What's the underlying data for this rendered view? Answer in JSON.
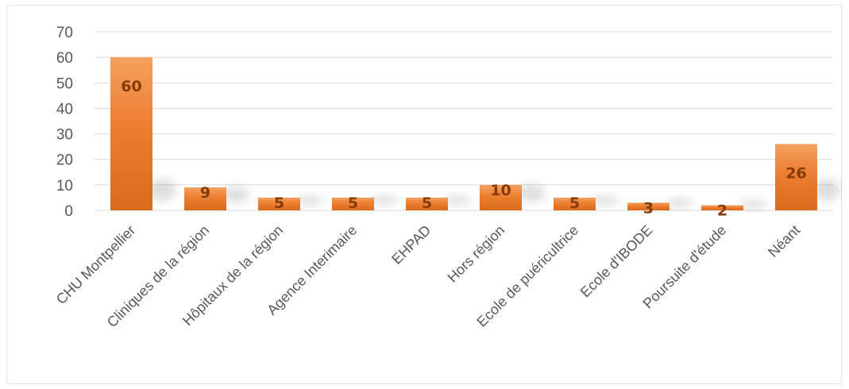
{
  "chart_data": {
    "type": "bar",
    "categories": [
      "CHU Montpellier",
      "Cliniques de la région",
      "Hôpitaux de la région",
      "Agence Interimaire",
      "EHPAD",
      "Hors région",
      "Ecole de puéricultrice",
      "Ecole d'IBODE",
      "Poursuite d'étude",
      "Néant"
    ],
    "values": [
      60,
      9,
      5,
      5,
      5,
      10,
      5,
      3,
      2,
      26
    ],
    "data_labels": [
      "60",
      "9",
      "5",
      "5",
      "5",
      "10",
      "5",
      "3",
      "2",
      "26"
    ],
    "yticks": [
      "0",
      "10",
      "20",
      "30",
      "40",
      "50",
      "60",
      "70"
    ],
    "ylim": [
      0,
      70
    ],
    "title": "",
    "xlabel": "",
    "ylabel": "",
    "grid": true,
    "legend": "none",
    "colors": {
      "bar_top": "#f4a15f",
      "bar": "#ed7d31",
      "bar_bottom": "#d86a1e",
      "data_label": "#843c0c",
      "gridline": "#d9d9d9",
      "tick_text": "#595959"
    }
  }
}
